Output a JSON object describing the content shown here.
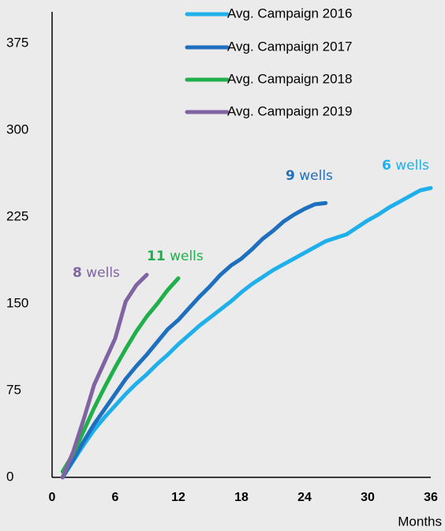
{
  "chart_data": {
    "type": "line",
    "xlabel": "Months",
    "xlim": [
      0,
      36
    ],
    "xticks": [
      0,
      6,
      12,
      18,
      24,
      30,
      36
    ],
    "ylim": [
      0,
      400
    ],
    "yticks": [
      0,
      75,
      150,
      225,
      300,
      375
    ],
    "series": [
      {
        "name": "Avg. Campaign 2016",
        "color": "#1fb0ec",
        "x": [
          1,
          2,
          3,
          4,
          5,
          6,
          7,
          8,
          9,
          10,
          11,
          12,
          13,
          14,
          15,
          16,
          17,
          18,
          19,
          20,
          21,
          22,
          23,
          24,
          25,
          26,
          27,
          28,
          29,
          30,
          31,
          32,
          33,
          34,
          35,
          36
        ],
        "values": [
          0,
          14,
          28,
          41,
          52,
          62,
          72,
          81,
          89,
          98,
          106,
          115,
          123,
          131,
          138,
          145,
          152,
          160,
          167,
          173,
          179,
          184,
          189,
          194,
          199,
          204,
          207,
          210,
          216,
          222,
          227,
          233,
          238,
          243,
          248,
          250
        ]
      },
      {
        "name": "Avg. Campaign 2017",
        "color": "#1f6fbf",
        "x": [
          1,
          2,
          3,
          4,
          5,
          6,
          7,
          8,
          9,
          10,
          11,
          12,
          13,
          14,
          15,
          16,
          17,
          18,
          19,
          20,
          21,
          22,
          23,
          24,
          25,
          26
        ],
        "values": [
          0,
          15,
          31,
          46,
          59,
          72,
          85,
          96,
          106,
          117,
          128,
          136,
          146,
          156,
          165,
          175,
          183,
          189,
          197,
          206,
          213,
          221,
          227,
          232,
          236,
          237
        ]
      },
      {
        "name": "Avg. Campaign 2018",
        "color": "#20b04b",
        "x": [
          1,
          2,
          3,
          4,
          5,
          6,
          7,
          8,
          9,
          10,
          11,
          12
        ],
        "values": [
          5,
          20,
          40,
          60,
          78,
          95,
          111,
          126,
          139,
          150,
          162,
          172
        ]
      },
      {
        "name": "Avg. Campaign 2019",
        "color": "#8064a2",
        "x": [
          1,
          2,
          3,
          4,
          5,
          6,
          7,
          8,
          9
        ],
        "values": [
          0,
          22,
          50,
          80,
          100,
          120,
          152,
          166,
          175
        ]
      }
    ],
    "annotations": [
      {
        "count": "6",
        "text": "wells"
      },
      {
        "count": "9",
        "text": "wells"
      },
      {
        "count": "11",
        "text": "wells"
      },
      {
        "count": "8",
        "text": "wells"
      }
    ]
  }
}
